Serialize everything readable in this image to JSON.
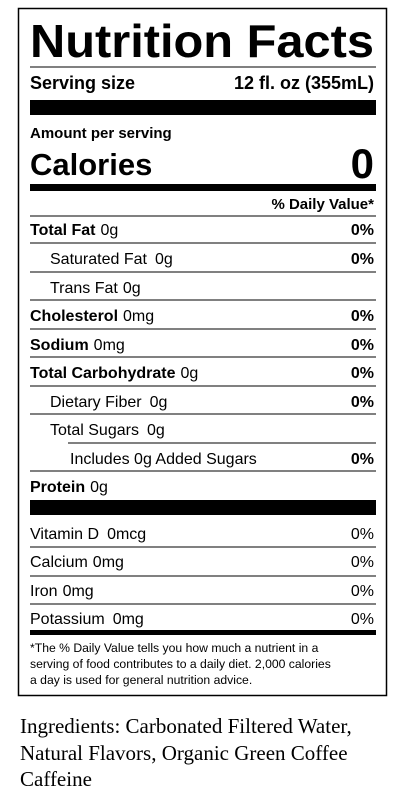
{
  "label": {
    "title": "Nutrition Facts",
    "serving_size": {
      "label": "Serving size",
      "value": "12 fl. oz (355mL)"
    },
    "amount_per_serving": "Amount per serving",
    "calories": {
      "label": "Calories",
      "value": "0"
    },
    "daily_value_header": "% Daily Value*",
    "nutrients": [
      {
        "name": "Total Fat",
        "amount": "0g",
        "dv": "0%"
      },
      {
        "name": "Saturated Fat",
        "amount": "0g",
        "dv": "0%"
      },
      {
        "name": "Trans Fat",
        "amount": "0g"
      },
      {
        "name": "Cholesterol",
        "amount": "0mg",
        "dv": "0%"
      },
      {
        "name": "Sodium",
        "amount": "0mg",
        "dv": "0%"
      },
      {
        "name": "Total Carbohydrate",
        "amount": "0g",
        "dv": "0%"
      },
      {
        "name": "Dietary Fiber",
        "amount": "0g",
        "dv": "0%"
      },
      {
        "name": "Total Sugars",
        "amount": "0g"
      },
      {
        "name": "Includes 0g Added Sugars",
        "dv": "0%"
      },
      {
        "name": "Protein",
        "amount": "0g"
      }
    ],
    "vitamins": [
      {
        "name": "Vitamin D",
        "amount": "0mcg",
        "dv": "0%"
      },
      {
        "name": "Calcium",
        "amount": "0mg",
        "dv": "0%"
      },
      {
        "name": "Iron",
        "amount": "0mg",
        "dv": "0%"
      },
      {
        "name": "Potassium",
        "amount": "0mg",
        "dv": "0%"
      }
    ],
    "footnote": [
      "*The % Daily Value tells you how much a nutrient in a",
      "serving of food contributes to a daily diet. 2,000 calories",
      "a day is used for general nutrition advice."
    ]
  },
  "ingredients": [
    "Ingredients: Carbonated Filtered Water,",
    "Natural Flavors, Organic Green Coffee",
    "Caffeine"
  ]
}
